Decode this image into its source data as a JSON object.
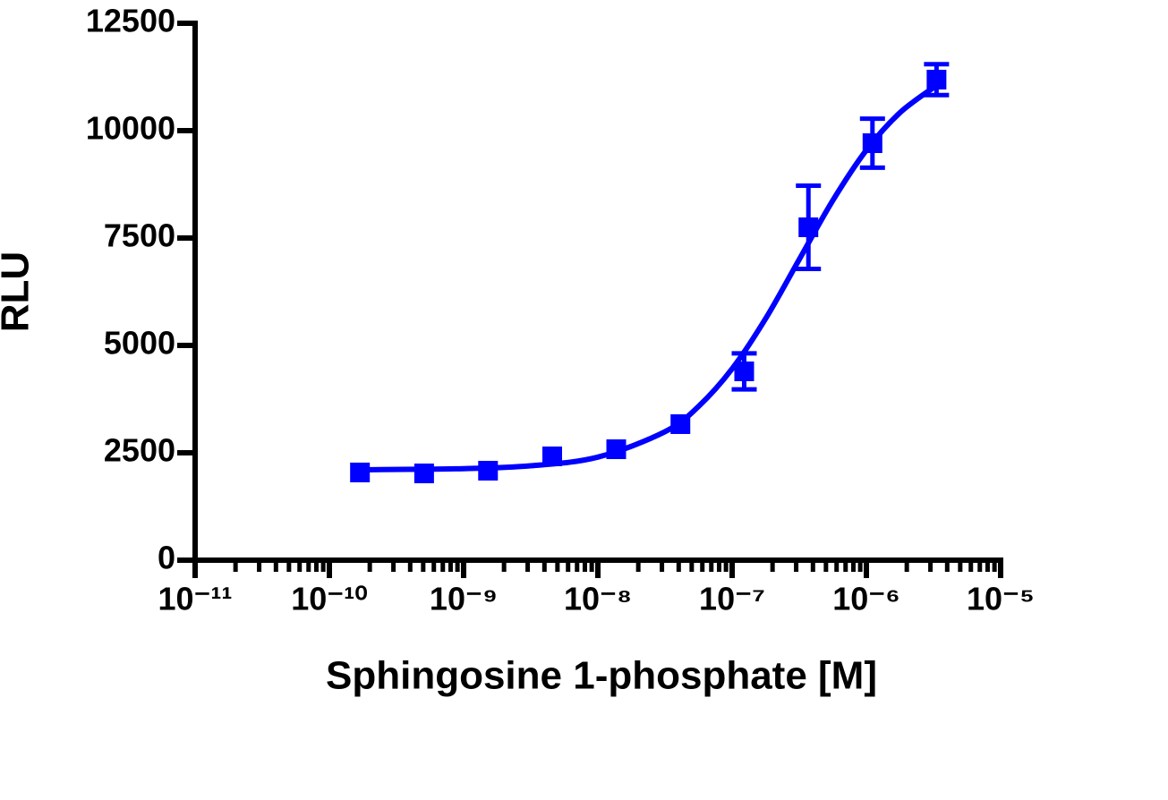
{
  "chart_data": {
    "type": "scatter",
    "xlabel": "Sphingosine 1-phosphate [M]",
    "ylabel": "RLU",
    "xscale": "log",
    "xlim": [
      1e-11,
      1e-05
    ],
    "xticks": [
      {
        "value": 1e-11,
        "label": "10⁻¹¹"
      },
      {
        "value": 1e-10,
        "label": "10⁻¹⁰"
      },
      {
        "value": 1e-09,
        "label": "10⁻⁹"
      },
      {
        "value": 1e-08,
        "label": "10⁻⁸"
      },
      {
        "value": 1e-07,
        "label": "10⁻⁷"
      },
      {
        "value": 1e-06,
        "label": "10⁻⁶"
      },
      {
        "value": 1e-05,
        "label": "10⁻⁵"
      }
    ],
    "minor_ticks": true,
    "ylim": [
      0,
      12500
    ],
    "yticks": [
      0,
      2500,
      5000,
      7500,
      10000,
      12500
    ],
    "color": "#0000ff",
    "x": [
      1.69e-10,
      5.08e-10,
      1.52e-09,
      4.57e-09,
      1.37e-08,
      4.12e-08,
      1.23e-07,
      3.7e-07,
      1.11e-06,
      3.33e-06
    ],
    "values": [
      2042,
      2020,
      2083,
      2417,
      2583,
      3167,
      4396,
      7750,
      9708,
      11188
    ],
    "errors": [
      null,
      null,
      null,
      null,
      null,
      null,
      420,
      970,
      570,
      360
    ],
    "fit": {
      "x": [
        1.7e-10,
        1e-09,
        3.16e-09,
        1e-08,
        3.16e-08,
        5.62e-08,
        1e-07,
        1.78e-07,
        3.16e-07,
        5.62e-07,
        1e-06,
        1.78e-06,
        3.31e-06
      ],
      "values": [
        2105,
        2131,
        2197,
        2400,
        2991,
        3580,
        4456,
        5628,
        7000,
        8374,
        9547,
        10419,
        11046
      ]
    }
  }
}
